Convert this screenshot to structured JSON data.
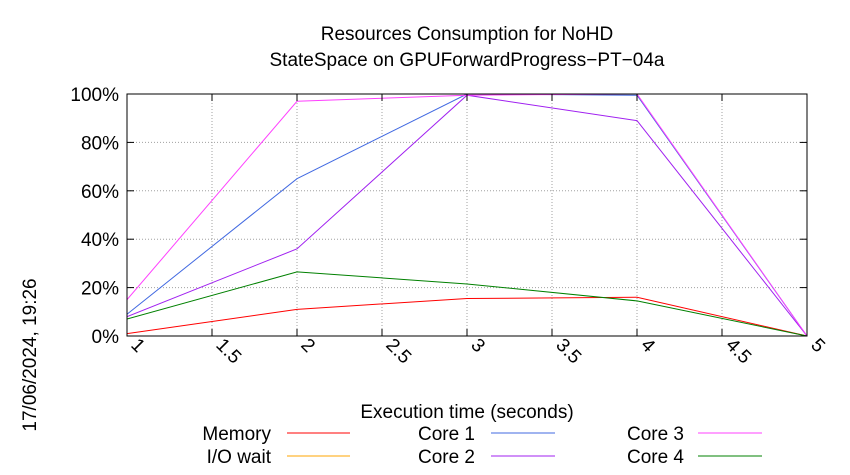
{
  "chart_data": {
    "type": "line",
    "title": "Resources Consumption for NoHD",
    "subtitle": "StateSpace on GPUForwardProgress−PT−04a",
    "xlabel": "Execution time (seconds)",
    "ylabel": "",
    "side_label": "17/06/2024, 19:26",
    "xlim": [
      1,
      5
    ],
    "ylim": [
      0,
      100
    ],
    "xticks": [
      1,
      1.5,
      2,
      2.5,
      3,
      3.5,
      4,
      4.5,
      5
    ],
    "xtick_labels": [
      "1",
      "1.5",
      "2",
      "2.5",
      "3",
      "3.5",
      "4",
      "4.5",
      "5"
    ],
    "yticks": [
      0,
      20,
      40,
      60,
      80,
      100
    ],
    "ytick_labels": [
      "0%",
      "20%",
      "40%",
      "60%",
      "80%",
      "100%"
    ],
    "grid": true,
    "legend_position": "bottom",
    "x": [
      1,
      2,
      3,
      4,
      5
    ],
    "series": [
      {
        "name": "Memory",
        "color": "#ff0000",
        "values": [
          1,
          11,
          15.5,
          16,
          0
        ]
      },
      {
        "name": "I/O wait",
        "color": "#ffa500",
        "values": [
          0,
          0,
          0,
          0,
          0
        ]
      },
      {
        "name": "Core 1",
        "color": "#4169e1",
        "values": [
          9,
          65,
          100,
          99.5,
          0
        ]
      },
      {
        "name": "Core 2",
        "color": "#a020f0",
        "values": [
          8,
          36,
          99.5,
          89,
          0
        ]
      },
      {
        "name": "Core 3",
        "color": "#ff40ff",
        "values": [
          15,
          97,
          99.5,
          100,
          0
        ]
      },
      {
        "name": "Core 4",
        "color": "#008000",
        "values": [
          7,
          26.5,
          21.5,
          14.5,
          0
        ]
      }
    ]
  }
}
